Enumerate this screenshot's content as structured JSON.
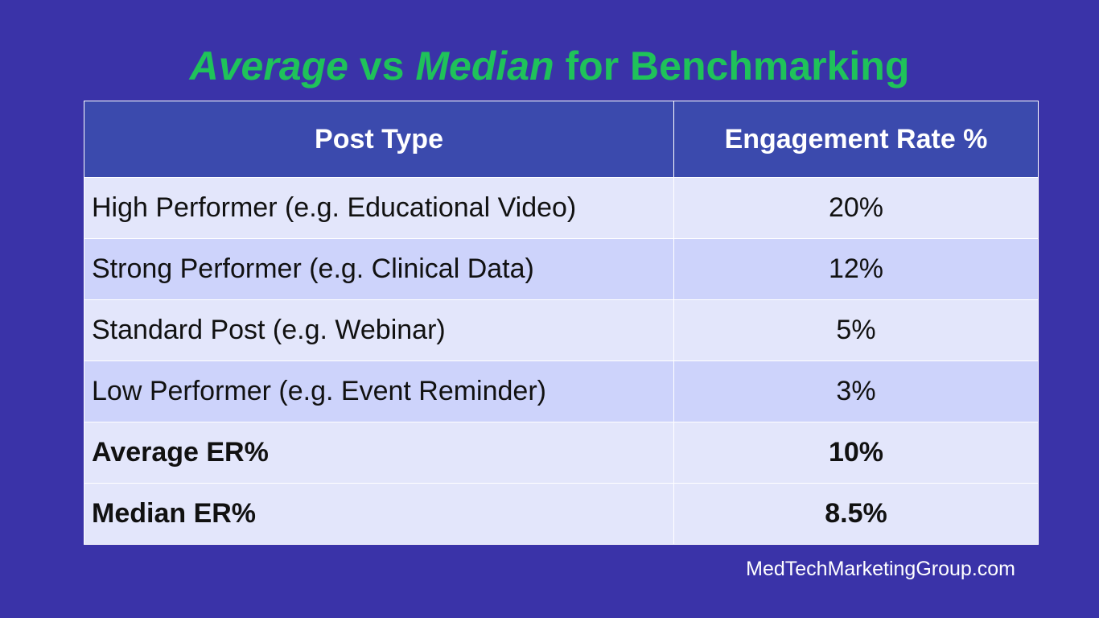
{
  "title": {
    "part1": "Average",
    "part2": " vs ",
    "part3": "Median",
    "part4": " for Benchmarking"
  },
  "table": {
    "headers": [
      "Post Type",
      "Engagement Rate %"
    ],
    "rows": [
      {
        "type": "High Performer (e.g. Educational Video)",
        "rate": "20%"
      },
      {
        "type": "Strong Performer (e.g. Clinical Data)",
        "rate": "12%"
      },
      {
        "type": "Standard Post (e.g. Webinar)",
        "rate": "5%"
      },
      {
        "type": "Low Performer (e.g. Event Reminder)",
        "rate": "3%"
      },
      {
        "type": "Average ER%",
        "rate": "10%"
      },
      {
        "type": "Median ER%",
        "rate": "8.5%"
      }
    ]
  },
  "footer": "MedTechMarketingGroup.com",
  "colors": {
    "background": "#3a33a8",
    "title": "#1fc25a",
    "header": "#3b4aad",
    "row_light": "#e3e6fb",
    "row_dark": "#cdd3fb"
  }
}
